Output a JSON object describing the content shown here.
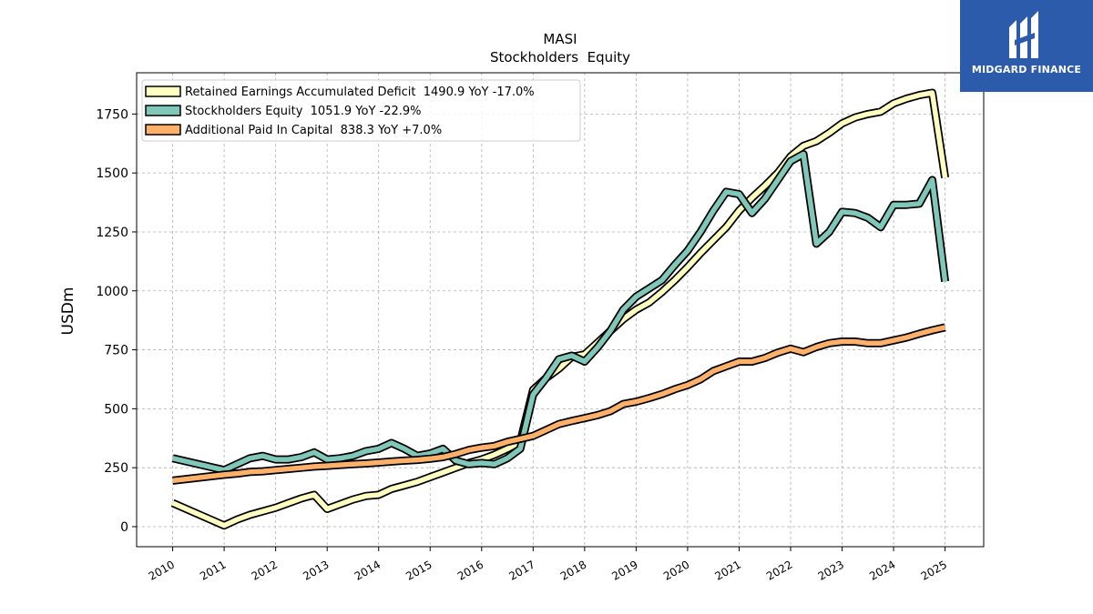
{
  "chart_data": {
    "type": "line",
    "title": "MASI",
    "subtitle": "Stockholders  Equity",
    "ylabel": "USDm",
    "xlabel": "",
    "ylim": [
      -85,
      1925
    ],
    "xlim": [
      2009.3,
      2025.75
    ],
    "yticks": [
      0,
      250,
      500,
      750,
      1000,
      1250,
      1500,
      1750
    ],
    "xticks": [
      2010,
      2011,
      2012,
      2013,
      2014,
      2015,
      2016,
      2017,
      2018,
      2019,
      2020,
      2021,
      2022,
      2023,
      2024,
      2025
    ],
    "grid": true,
    "legend_position": "top-left",
    "series": [
      {
        "name": "Retained Earnings Accumulated Deficit",
        "legend": "Retained Earnings Accumulated Deficit  1490.9 YoY -17.0%",
        "color": "#ffffbf",
        "points": [
          [
            2010.0,
            100
          ],
          [
            2011.0,
            5
          ],
          [
            2011.25,
            30
          ],
          [
            2011.5,
            50
          ],
          [
            2011.75,
            65
          ],
          [
            2012.0,
            80
          ],
          [
            2012.25,
            100
          ],
          [
            2012.5,
            120
          ],
          [
            2012.75,
            135
          ],
          [
            2013.0,
            75
          ],
          [
            2013.25,
            95
          ],
          [
            2013.5,
            115
          ],
          [
            2013.75,
            130
          ],
          [
            2014.0,
            135
          ],
          [
            2014.25,
            160
          ],
          [
            2014.5,
            175
          ],
          [
            2014.75,
            190
          ],
          [
            2015.0,
            210
          ],
          [
            2015.25,
            230
          ],
          [
            2015.5,
            250
          ],
          [
            2015.75,
            270
          ],
          [
            2016.0,
            285
          ],
          [
            2016.25,
            305
          ],
          [
            2016.5,
            330
          ],
          [
            2016.75,
            360
          ],
          [
            2017.0,
            580
          ],
          [
            2017.25,
            630
          ],
          [
            2017.5,
            670
          ],
          [
            2017.75,
            720
          ],
          [
            2018.0,
            730
          ],
          [
            2018.25,
            780
          ],
          [
            2018.5,
            830
          ],
          [
            2018.75,
            880
          ],
          [
            2019.0,
            920
          ],
          [
            2019.25,
            950
          ],
          [
            2019.5,
            995
          ],
          [
            2019.75,
            1045
          ],
          [
            2020.0,
            1100
          ],
          [
            2020.25,
            1160
          ],
          [
            2020.5,
            1215
          ],
          [
            2020.75,
            1270
          ],
          [
            2021.0,
            1340
          ],
          [
            2021.25,
            1395
          ],
          [
            2021.5,
            1445
          ],
          [
            2021.75,
            1500
          ],
          [
            2022.0,
            1570
          ],
          [
            2022.25,
            1615
          ],
          [
            2022.5,
            1635
          ],
          [
            2022.75,
            1670
          ],
          [
            2023.0,
            1710
          ],
          [
            2023.25,
            1735
          ],
          [
            2023.5,
            1750
          ],
          [
            2023.75,
            1760
          ],
          [
            2024.0,
            1795
          ],
          [
            2024.25,
            1815
          ],
          [
            2024.5,
            1830
          ],
          [
            2024.75,
            1840
          ],
          [
            2025.0,
            1480
          ]
        ]
      },
      {
        "name": "Stockholders Equity",
        "legend": "Stockholders Equity  1051.9 YoY -22.9%",
        "color": "#7fc8b9",
        "points": [
          [
            2010.0,
            290
          ],
          [
            2011.0,
            240
          ],
          [
            2011.25,
            265
          ],
          [
            2011.5,
            290
          ],
          [
            2011.75,
            300
          ],
          [
            2012.0,
            285
          ],
          [
            2012.25,
            285
          ],
          [
            2012.5,
            295
          ],
          [
            2012.75,
            315
          ],
          [
            2013.0,
            285
          ],
          [
            2013.25,
            290
          ],
          [
            2013.5,
            300
          ],
          [
            2013.75,
            320
          ],
          [
            2014.0,
            330
          ],
          [
            2014.25,
            355
          ],
          [
            2014.5,
            330
          ],
          [
            2014.75,
            300
          ],
          [
            2015.0,
            310
          ],
          [
            2015.25,
            330
          ],
          [
            2015.5,
            280
          ],
          [
            2015.75,
            265
          ],
          [
            2016.0,
            270
          ],
          [
            2016.25,
            265
          ],
          [
            2016.5,
            290
          ],
          [
            2016.75,
            330
          ],
          [
            2017.0,
            560
          ],
          [
            2017.25,
            630
          ],
          [
            2017.5,
            710
          ],
          [
            2017.75,
            725
          ],
          [
            2018.0,
            700
          ],
          [
            2018.25,
            760
          ],
          [
            2018.5,
            830
          ],
          [
            2018.75,
            920
          ],
          [
            2019.0,
            975
          ],
          [
            2019.25,
            1010
          ],
          [
            2019.5,
            1045
          ],
          [
            2019.75,
            1110
          ],
          [
            2020.0,
            1170
          ],
          [
            2020.25,
            1250
          ],
          [
            2020.5,
            1340
          ],
          [
            2020.75,
            1420
          ],
          [
            2021.0,
            1410
          ],
          [
            2021.25,
            1330
          ],
          [
            2021.5,
            1390
          ],
          [
            2021.75,
            1470
          ],
          [
            2022.0,
            1550
          ],
          [
            2022.25,
            1580
          ],
          [
            2022.5,
            1200
          ],
          [
            2022.75,
            1250
          ],
          [
            2023.0,
            1335
          ],
          [
            2023.25,
            1330
          ],
          [
            2023.5,
            1310
          ],
          [
            2023.75,
            1270
          ],
          [
            2024.0,
            1365
          ],
          [
            2024.25,
            1365
          ],
          [
            2024.5,
            1370
          ],
          [
            2024.75,
            1470
          ],
          [
            2025.0,
            1040
          ]
        ]
      },
      {
        "name": "Additional Paid In Capital",
        "legend": "Additional Paid In Capital  838.3 YoY +7.0%",
        "color": "#fdb06a",
        "points": [
          [
            2010.0,
            195
          ],
          [
            2011.0,
            220
          ],
          [
            2011.25,
            225
          ],
          [
            2011.5,
            232
          ],
          [
            2011.75,
            235
          ],
          [
            2012.0,
            240
          ],
          [
            2012.25,
            245
          ],
          [
            2012.5,
            250
          ],
          [
            2012.75,
            255
          ],
          [
            2013.0,
            258
          ],
          [
            2013.25,
            262
          ],
          [
            2013.5,
            265
          ],
          [
            2013.75,
            268
          ],
          [
            2014.0,
            272
          ],
          [
            2014.25,
            276
          ],
          [
            2014.5,
            280
          ],
          [
            2014.75,
            283
          ],
          [
            2015.0,
            288
          ],
          [
            2015.25,
            295
          ],
          [
            2015.5,
            308
          ],
          [
            2015.75,
            325
          ],
          [
            2016.0,
            335
          ],
          [
            2016.25,
            342
          ],
          [
            2016.5,
            360
          ],
          [
            2016.75,
            372
          ],
          [
            2017.0,
            385
          ],
          [
            2017.25,
            410
          ],
          [
            2017.5,
            435
          ],
          [
            2017.75,
            448
          ],
          [
            2018.0,
            460
          ],
          [
            2018.25,
            473
          ],
          [
            2018.5,
            490
          ],
          [
            2018.75,
            520
          ],
          [
            2019.0,
            530
          ],
          [
            2019.25,
            545
          ],
          [
            2019.5,
            562
          ],
          [
            2019.75,
            583
          ],
          [
            2020.0,
            600
          ],
          [
            2020.25,
            625
          ],
          [
            2020.5,
            660
          ],
          [
            2020.75,
            680
          ],
          [
            2021.0,
            700
          ],
          [
            2021.25,
            700
          ],
          [
            2021.5,
            715
          ],
          [
            2021.75,
            738
          ],
          [
            2022.0,
            755
          ],
          [
            2022.25,
            740
          ],
          [
            2022.5,
            762
          ],
          [
            2022.75,
            778
          ],
          [
            2023.0,
            785
          ],
          [
            2023.25,
            785
          ],
          [
            2023.5,
            778
          ],
          [
            2023.75,
            778
          ],
          [
            2024.0,
            790
          ],
          [
            2024.25,
            802
          ],
          [
            2024.5,
            818
          ],
          [
            2024.75,
            833
          ],
          [
            2025.0,
            845
          ]
        ]
      }
    ]
  },
  "logo": {
    "text": "MIDGARD FINANCE",
    "color": "#2d5bab"
  }
}
